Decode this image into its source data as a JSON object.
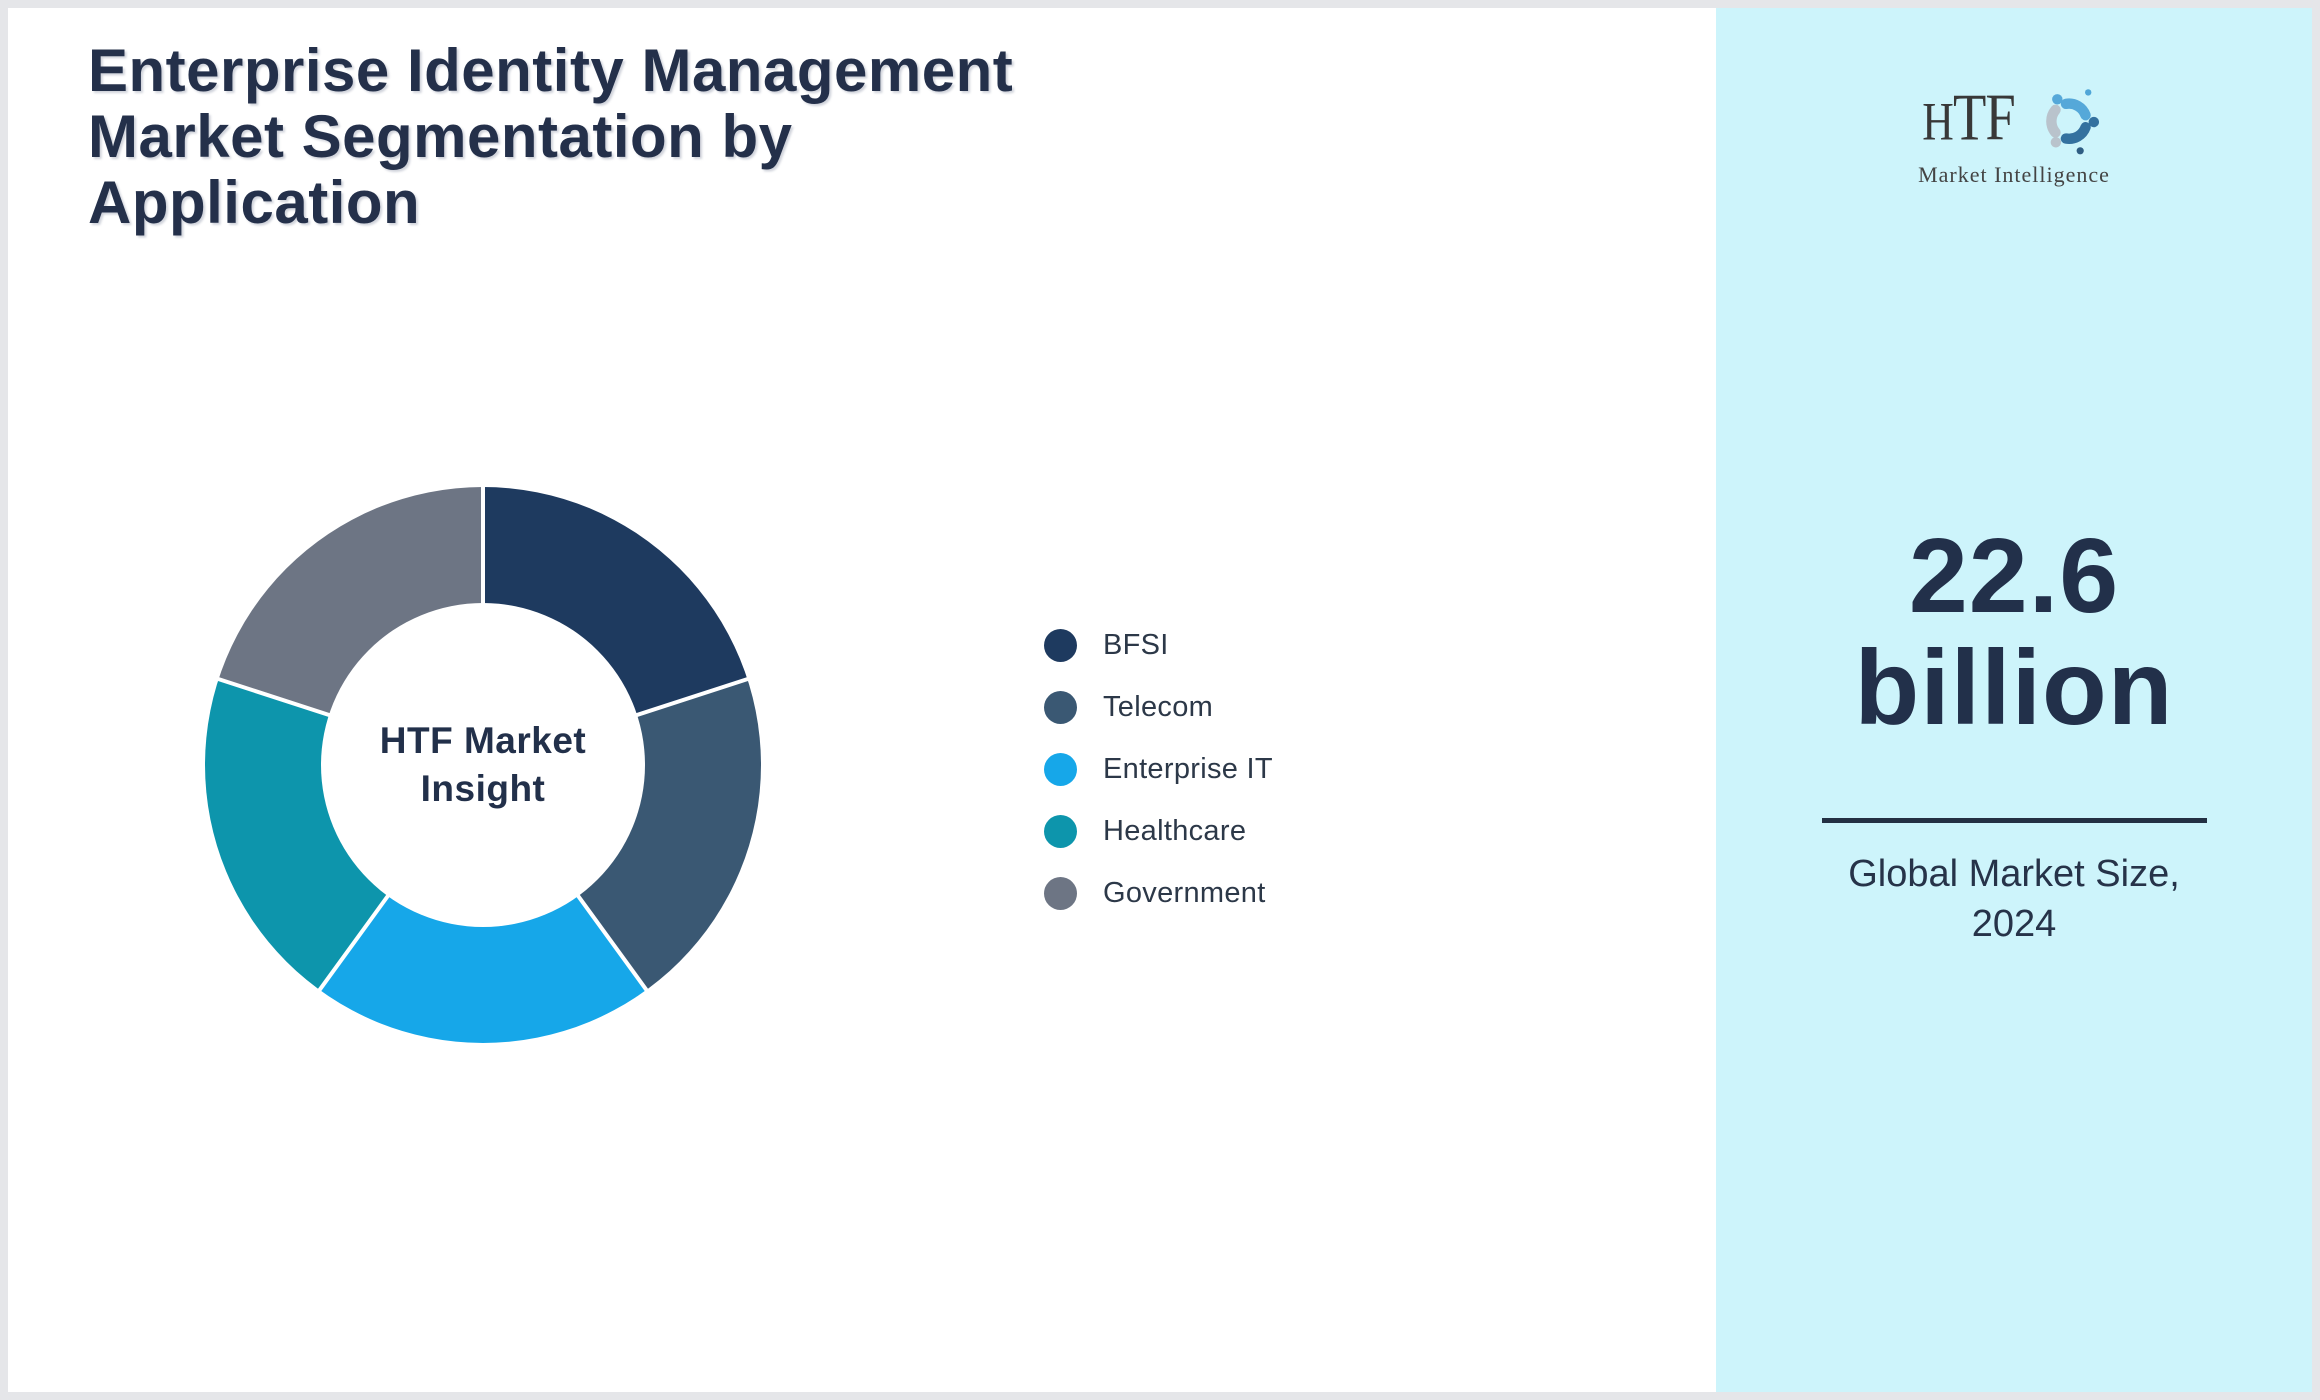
{
  "page": {
    "frame_color": "#e5e6e9",
    "card_background": "#ffffff"
  },
  "header": {
    "title_lines": [
      "Enterprise Identity Management",
      "Market Segmentation by",
      "Application"
    ],
    "title_color": "#24304a"
  },
  "chart_data": {
    "type": "pie",
    "variant": "donut",
    "title": "Enterprise Identity Management Market Segmentation by Application",
    "center_label_lines": [
      "HTF Market",
      "Insight"
    ],
    "categories": [
      "BFSI",
      "Telecom",
      "Enterprise IT",
      "Healthcare",
      "Government"
    ],
    "values_percent": [
      20,
      20,
      20,
      20,
      20
    ],
    "colors": [
      "#1e3a5f",
      "#3a5873",
      "#16a7e9",
      "#0d95ac",
      "#6d7584"
    ],
    "start_angle_deg": 0,
    "hole_ratio": 0.58,
    "slice_gap_color": "#ffffff",
    "legend_position": "right",
    "legend_text_color": "#2c3848"
  },
  "icons": {
    "legend_marker": "circle-dot-icon",
    "logo_mark": "swirl-figures-icon"
  },
  "sidebar": {
    "background": "#cdf4fb",
    "logo": {
      "text_h": "H",
      "text_tf": "TF",
      "subtext": "Market Intelligence",
      "text_color": "#383838",
      "swirl_colors": [
        "#55a8d9",
        "#34719f",
        "#b9c3cc"
      ],
      "dot_colors": [
        "#4fa6d8",
        "#2f5d83"
      ]
    },
    "stat": {
      "value_line1": "22.6",
      "value_line2": "billion",
      "caption_line1": "Global Market Size,",
      "caption_line2": "2024",
      "text_color": "#22304a",
      "divider_color": "#233043"
    }
  }
}
